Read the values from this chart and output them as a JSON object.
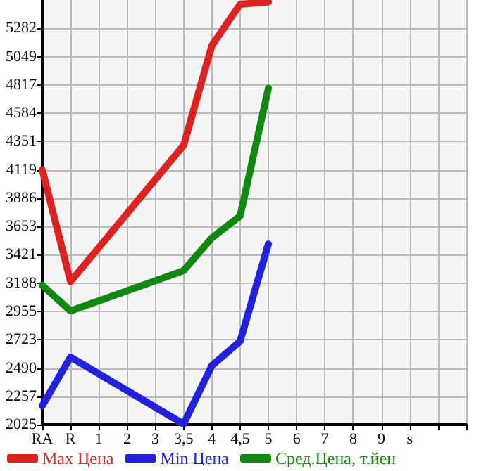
{
  "chart_data": {
    "type": "line",
    "categories": [
      "RA",
      "R",
      "1",
      "2",
      "3",
      "3,5",
      "4",
      "4,5",
      "5",
      "6",
      "7",
      "8",
      "9",
      "s",
      null,
      null
    ],
    "series": [
      {
        "name": "Max Цена",
        "color": "#dd2222",
        "values": [
          4120,
          3200,
          null,
          null,
          null,
          4320,
          5140,
          5480,
          5500,
          null,
          null,
          null,
          null,
          null,
          null,
          null
        ]
      },
      {
        "name": "Min Цена",
        "color": "#2222dd",
        "values": [
          2180,
          2580,
          null,
          null,
          null,
          2030,
          2510,
          2710,
          3510,
          null,
          null,
          null,
          null,
          null,
          null,
          null
        ]
      },
      {
        "name": "Сред.Цена, т.йен",
        "color": "#118811",
        "values": [
          3170,
          2960,
          null,
          null,
          null,
          3290,
          3560,
          3740,
          4790,
          null,
          null,
          null,
          null,
          null,
          null,
          null
        ]
      }
    ],
    "ylim": [
      2025,
      5515
    ],
    "yticks": [
      2025,
      2257,
      2490,
      2723,
      2955,
      3188,
      3421,
      3653,
      3886,
      4119,
      4351,
      4584,
      4817,
      5049,
      5282
    ],
    "grid": true,
    "legend": "bottom",
    "marker": "none",
    "line_style": "solid"
  }
}
